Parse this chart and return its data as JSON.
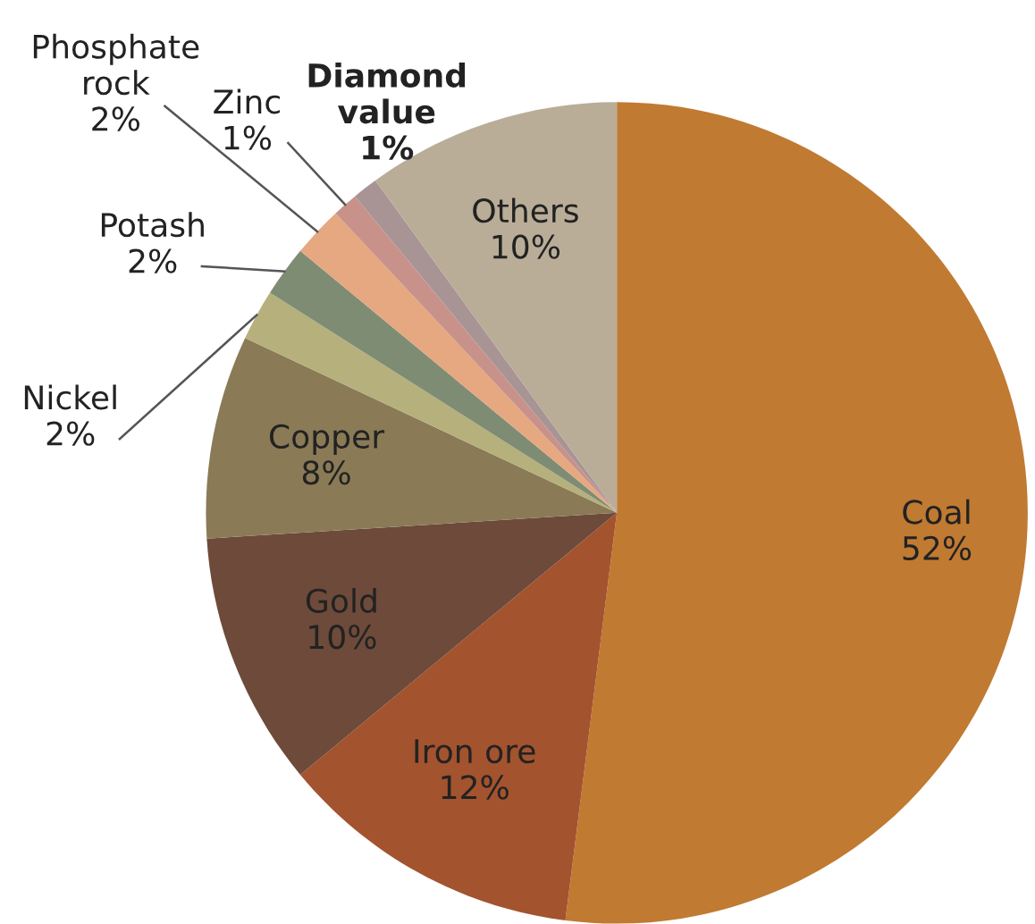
{
  "chart_data": {
    "type": "pie",
    "categories": [
      "Coal",
      "Iron ore",
      "Gold",
      "Copper",
      "Nickel",
      "Potash",
      "Phosphate rock",
      "Zinc",
      "Diamond value",
      "Others"
    ],
    "values": [
      52,
      12,
      10,
      8,
      2,
      2,
      2,
      1,
      1,
      10
    ],
    "colors": [
      "#c07a32",
      "#a3532e",
      "#6e4a3a",
      "#8a7a56",
      "#b5b07c",
      "#7f8c74",
      "#e5a880",
      "#c8928a",
      "#a89494",
      "#b9ad98"
    ],
    "value_labels": [
      "52%",
      "12%",
      "10%",
      "8%",
      "2%",
      "2%",
      "2%",
      "1%",
      "1%",
      "10%"
    ],
    "legend": false
  }
}
